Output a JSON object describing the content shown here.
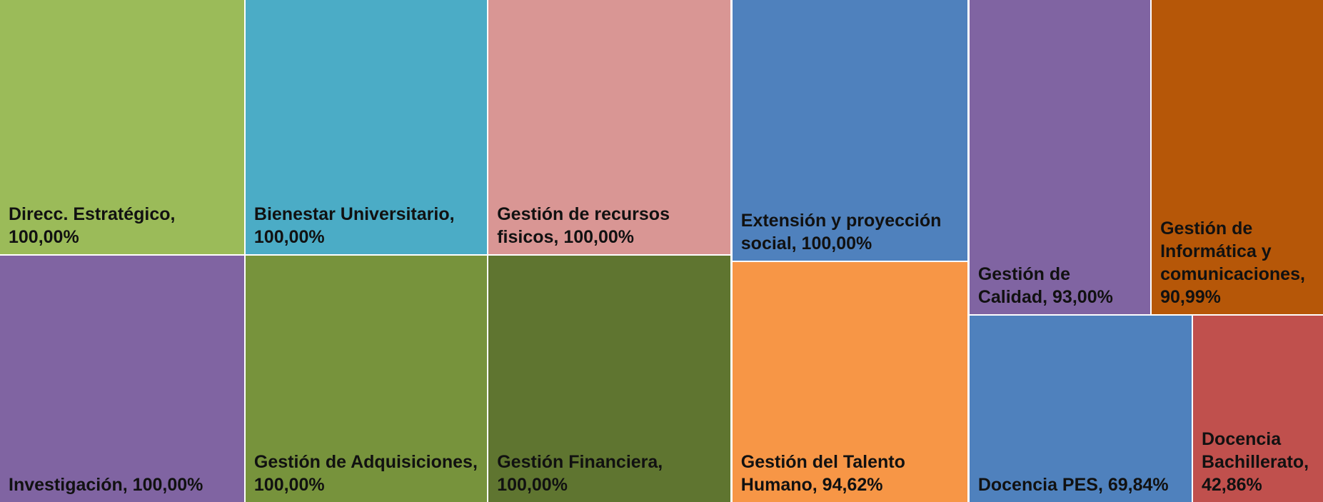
{
  "chart_data": {
    "type": "treemap",
    "categories": [
      "Direcc. Estratégico,",
      "Investigación,",
      "Bienestar Universitario,",
      "Gestión de Adquisiciones,",
      "Gestión de recursos fisicos,",
      "Gestión Financiera,",
      "Extensión y proyección social,",
      "Gestión del Talento Humano,",
      "Gestión de Calidad,",
      "Gestión de Informática y comunicaciones,",
      "Docencia PES,",
      "Docencia Bachillerato,"
    ],
    "values": [
      100,
      100,
      100,
      100,
      100,
      100,
      100,
      94.62,
      93,
      90.99,
      69.84,
      42.86
    ],
    "value_labels": [
      "100,00%",
      "100,00%",
      "100,00%",
      "100,00%",
      "100,00%",
      "100,00%",
      "100,00%",
      "94,62%",
      "93,00%",
      "90,99%",
      "69,84%",
      "42,86%"
    ],
    "colors": [
      "#9bbb59",
      "#8064a2",
      "#4bacc6",
      "#77933c",
      "#d99694",
      "#5f7530",
      "#4f81bd",
      "#f79646",
      "#8064a2",
      "#b65708",
      "#4f81bd",
      "#c0504d"
    ]
  }
}
